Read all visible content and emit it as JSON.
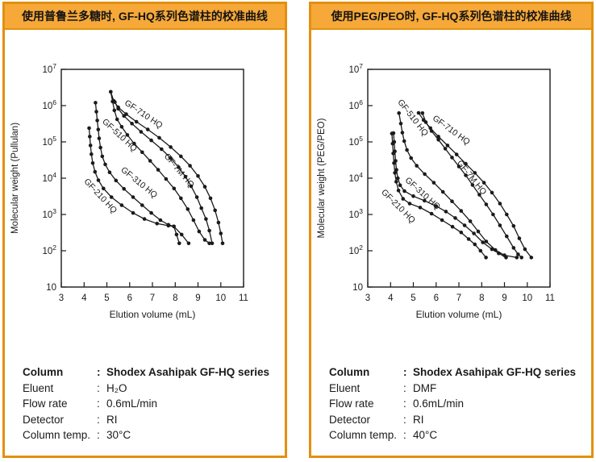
{
  "accent_colors": {
    "panel_border": "#E3900F",
    "header_fill": "#F6A838",
    "text": "#1A1A1A"
  },
  "info_separator": ":",
  "panels": [
    {
      "id": "pullulan",
      "header": "使用普鲁兰多糖时, GF-HQ系列色谱柱的校准曲线",
      "info": {
        "rows": [
          {
            "label": "Column",
            "value": "Shodex Asahipak GF-HQ series"
          },
          {
            "label": "Eluent",
            "value": "H₂O"
          },
          {
            "label": "Flow rate",
            "value": "0.6mL/min"
          },
          {
            "label": "Detector",
            "value": "RI"
          },
          {
            "label": "Column temp.",
            "value": "30°C"
          }
        ]
      }
    },
    {
      "id": "peg-peo",
      "header": "使用PEG/PEO时, GF-HQ系列色谱柱的校准曲线",
      "info": {
        "rows": [
          {
            "label": "Column",
            "value": "Shodex Asahipak GF-HQ series"
          },
          {
            "label": "Eluent",
            "value": "DMF"
          },
          {
            "label": "Flow rate",
            "value": "0.6mL/min"
          },
          {
            "label": "Detector",
            "value": "RI"
          },
          {
            "label": "Column temp.",
            "value": "40°C"
          }
        ]
      }
    }
  ],
  "chart_data": [
    {
      "type": "line",
      "title": "",
      "xlabel": "Elution volume (mL)",
      "ylabel": "Molecular weight (Pullulan)",
      "xlim": [
        3,
        11
      ],
      "x_ticks": [
        3,
        4,
        5,
        6,
        7,
        8,
        9,
        10,
        11
      ],
      "y_scale": "log",
      "ylim": [
        10,
        10000000
      ],
      "y_tick_exponents": [
        1,
        2,
        3,
        4,
        5,
        6,
        7
      ],
      "grid": false,
      "marker": "filled-circle",
      "series": [
        {
          "name": "GF-210 HQ",
          "label_anchor": [
            3.98,
            8000
          ],
          "label_rot": 47,
          "points": [
            [
              4.22,
              240000.0
            ],
            [
              4.25,
              140000.0
            ],
            [
              4.28,
              80000.0
            ],
            [
              4.32,
              46000.0
            ],
            [
              4.38,
              26000.0
            ],
            [
              4.48,
              15000.0
            ],
            [
              4.63,
              8800.0
            ],
            [
              4.85,
              5200.0
            ],
            [
              5.2,
              3000.0
            ],
            [
              5.65,
              1800.0
            ],
            [
              6.15,
              1100.0
            ],
            [
              6.65,
              750.0
            ],
            [
              7.2,
              560.0
            ],
            [
              7.7,
              490.0
            ],
            [
              7.94,
              470.0
            ],
            [
              8.06,
              280.0
            ],
            [
              8.18,
              160.0
            ]
          ]
        },
        {
          "name": "GF-310 HQ",
          "label_anchor": [
            5.6,
            16000
          ],
          "label_rot": 39,
          "points": [
            [
              4.5,
              1200000.0
            ],
            [
              4.54,
              680000.0
            ],
            [
              4.58,
              390000.0
            ],
            [
              4.62,
              220000.0
            ],
            [
              4.66,
              125000.0
            ],
            [
              4.72,
              70000.0
            ],
            [
              4.8,
              40000.0
            ],
            [
              4.93,
              24000.0
            ],
            [
              5.12,
              14500.0
            ],
            [
              5.4,
              8600.0
            ],
            [
              5.75,
              5100.0
            ],
            [
              6.15,
              3000.0
            ],
            [
              6.55,
              1800.0
            ],
            [
              6.95,
              1100.0
            ],
            [
              7.35,
              700.0
            ],
            [
              7.7,
              520.0
            ],
            [
              7.94,
              470.0
            ],
            [
              8.28,
              280.0
            ],
            [
              8.59,
              160.0
            ]
          ]
        },
        {
          "name": "GF-510 HQ",
          "label_anchor": [
            4.78,
            350000
          ],
          "label_rot": 43,
          "points": [
            [
              5.17,
              2400000.0
            ],
            [
              5.25,
              1300000.0
            ],
            [
              5.33,
              740000.0
            ],
            [
              5.45,
              420000.0
            ],
            [
              5.65,
              260000.0
            ],
            [
              5.9,
              155000.0
            ],
            [
              6.2,
              90000.0
            ],
            [
              6.55,
              52000.0
            ],
            [
              6.9,
              30000.0
            ],
            [
              7.25,
              17000.0
            ],
            [
              7.6,
              9500.0
            ],
            [
              7.95,
              5200.0
            ],
            [
              8.25,
              2800.0
            ],
            [
              8.55,
              1400.0
            ],
            [
              8.8,
              700.0
            ],
            [
              9.05,
              340.0
            ],
            [
              9.3,
              200.0
            ],
            [
              9.5,
              160.0
            ]
          ]
        },
        {
          "name": "GF-7M HQ",
          "label_anchor": [
            7.5,
            40000
          ],
          "label_rot": 50,
          "points": [
            [
              5.35,
              1250000.0
            ],
            [
              5.5,
              820000.0
            ],
            [
              5.75,
              520000.0
            ],
            [
              6.1,
              320000.0
            ],
            [
              6.5,
              190000.0
            ],
            [
              6.95,
              110000.0
            ],
            [
              7.4,
              63000.0
            ],
            [
              7.8,
              36000.0
            ],
            [
              8.15,
              20000.0
            ],
            [
              8.45,
              11000.0
            ],
            [
              8.7,
              6000.0
            ],
            [
              8.95,
              3000.0
            ],
            [
              9.15,
              1500.0
            ],
            [
              9.35,
              750.0
            ],
            [
              9.5,
              360.0
            ],
            [
              9.62,
              160.0
            ]
          ]
        },
        {
          "name": "GF-710 HQ",
          "label_anchor": [
            5.75,
            1100000
          ],
          "label_rot": 34,
          "points": [
            [
              5.17,
              2400000.0
            ],
            [
              5.3,
              1350000.0
            ],
            [
              5.5,
              900000.0
            ],
            [
              5.85,
              580000.0
            ],
            [
              6.3,
              360000.0
            ],
            [
              6.8,
              220000.0
            ],
            [
              7.3,
              130000.0
            ],
            [
              7.8,
              72000.0
            ],
            [
              8.25,
              40000.0
            ],
            [
              8.65,
              22000.0
            ],
            [
              9.0,
              11500.0
            ],
            [
              9.3,
              5800.0
            ],
            [
              9.55,
              2800.0
            ],
            [
              9.75,
              1300.0
            ],
            [
              9.9,
              600.0
            ],
            [
              10.0,
              300.0
            ],
            [
              10.08,
              160.0
            ]
          ]
        }
      ]
    },
    {
      "type": "line",
      "title": "",
      "xlabel": "Elution volume (mL)",
      "ylabel": "Molecular weight (PEG/PEO)",
      "xlim": [
        3,
        11
      ],
      "x_ticks": [
        3,
        4,
        5,
        6,
        7,
        8,
        9,
        10,
        11
      ],
      "y_scale": "log",
      "ylim": [
        10,
        10000000
      ],
      "y_tick_exponents": [
        1,
        2,
        3,
        4,
        5,
        6,
        7
      ],
      "grid": false,
      "marker": "filled-circle",
      "series": [
        {
          "name": "GF-210 HQ",
          "label_anchor": [
            3.58,
            4000
          ],
          "label_rot": 45,
          "points": [
            [
              4.06,
              170000.0
            ],
            [
              4.09,
              90000.0
            ],
            [
              4.12,
              48000.0
            ],
            [
              4.15,
              26000.0
            ],
            [
              4.19,
              14000.0
            ],
            [
              4.25,
              8000.0
            ],
            [
              4.35,
              4600.0
            ],
            [
              4.55,
              2700.0
            ],
            [
              4.84,
              2000.0
            ],
            [
              5.3,
              1550.0
            ],
            [
              5.8,
              1050.0
            ],
            [
              6.26,
              700.0
            ],
            [
              6.72,
              460.0
            ],
            [
              7.1,
              320.0
            ],
            [
              7.43,
              210.0
            ],
            [
              7.7,
              150.0
            ],
            [
              7.95,
              100.0
            ],
            [
              8.19,
              65.0
            ]
          ]
        },
        {
          "name": "GF-310 HQ",
          "label_anchor": [
            4.62,
            8500
          ],
          "label_rot": 42,
          "points": [
            [
              4.13,
              175000.0
            ],
            [
              4.16,
              100000.0
            ],
            [
              4.19,
              55000.0
            ],
            [
              4.22,
              30000.0
            ],
            [
              4.26,
              17000.0
            ],
            [
              4.32,
              10000.0
            ],
            [
              4.42,
              6400.0
            ],
            [
              4.61,
              4400.0
            ],
            [
              5.0,
              3200.0
            ],
            [
              5.49,
              2400.0
            ],
            [
              6.0,
              1700.0
            ],
            [
              6.43,
              1200.0
            ],
            [
              6.84,
              800.0
            ],
            [
              7.25,
              500.0
            ],
            [
              7.66,
              300.0
            ],
            [
              8.05,
              170.0
            ],
            [
              8.45,
              110.0
            ],
            [
              8.75,
              85.0
            ],
            [
              9.07,
              65.0
            ]
          ]
        },
        {
          "name": "GF-510 HQ",
          "label_anchor": [
            4.3,
            1250000
          ],
          "label_rot": 52,
          "points": [
            [
              4.37,
              620000.0
            ],
            [
              4.45,
              320000.0
            ],
            [
              4.52,
              180000.0
            ],
            [
              4.6,
              105000.0
            ],
            [
              4.72,
              60000.0
            ],
            [
              4.9,
              36000.0
            ],
            [
              5.15,
              22000.0
            ],
            [
              5.5,
              13000.0
            ],
            [
              5.9,
              7500.0
            ],
            [
              6.3,
              4200.0
            ],
            [
              6.7,
              2300.0
            ],
            [
              7.1,
              1250.0
            ],
            [
              7.5,
              650.0
            ],
            [
              7.85,
              340.0
            ],
            [
              8.2,
              180.0
            ],
            [
              8.6,
              105.0
            ],
            [
              9.0,
              75.0
            ],
            [
              9.54,
              65.0
            ]
          ]
        },
        {
          "name": "GF-7M HQ",
          "label_anchor": [
            6.9,
            26000
          ],
          "label_rot": 51,
          "points": [
            [
              5.4,
              620000.0
            ],
            [
              5.55,
              350000.0
            ],
            [
              5.8,
              200000.0
            ],
            [
              6.1,
              115000.0
            ],
            [
              6.4,
              65000.0
            ],
            [
              6.7,
              37000.0
            ],
            [
              7.0,
              21000.0
            ],
            [
              7.3,
              12000.0
            ],
            [
              7.6,
              6500.0
            ],
            [
              7.9,
              3500.0
            ],
            [
              8.2,
              1900.0
            ],
            [
              8.5,
              1000.0
            ],
            [
              8.8,
              500.0
            ],
            [
              9.1,
              250.0
            ],
            [
              9.4,
              120.0
            ],
            [
              9.6,
              80.0
            ],
            [
              9.75,
              65.0
            ]
          ]
        },
        {
          "name": "GF-710 HQ",
          "label_anchor": [
            5.82,
            420000
          ],
          "label_rot": 36,
          "points": [
            [
              5.23,
              630000.0
            ],
            [
              5.45,
              400000.0
            ],
            [
              5.75,
              240000.0
            ],
            [
              6.1,
              140000.0
            ],
            [
              6.5,
              80000.0
            ],
            [
              6.9,
              45000.0
            ],
            [
              7.3,
              25000.0
            ],
            [
              7.7,
              14000.0
            ],
            [
              8.1,
              7500.0
            ],
            [
              8.45,
              4000.0
            ],
            [
              8.8,
              2000.0
            ],
            [
              9.1,
              1000.0
            ],
            [
              9.4,
              480.0
            ],
            [
              9.65,
              220.0
            ],
            [
              9.9,
              110.0
            ],
            [
              10.18,
              65.0
            ]
          ]
        }
      ]
    }
  ]
}
